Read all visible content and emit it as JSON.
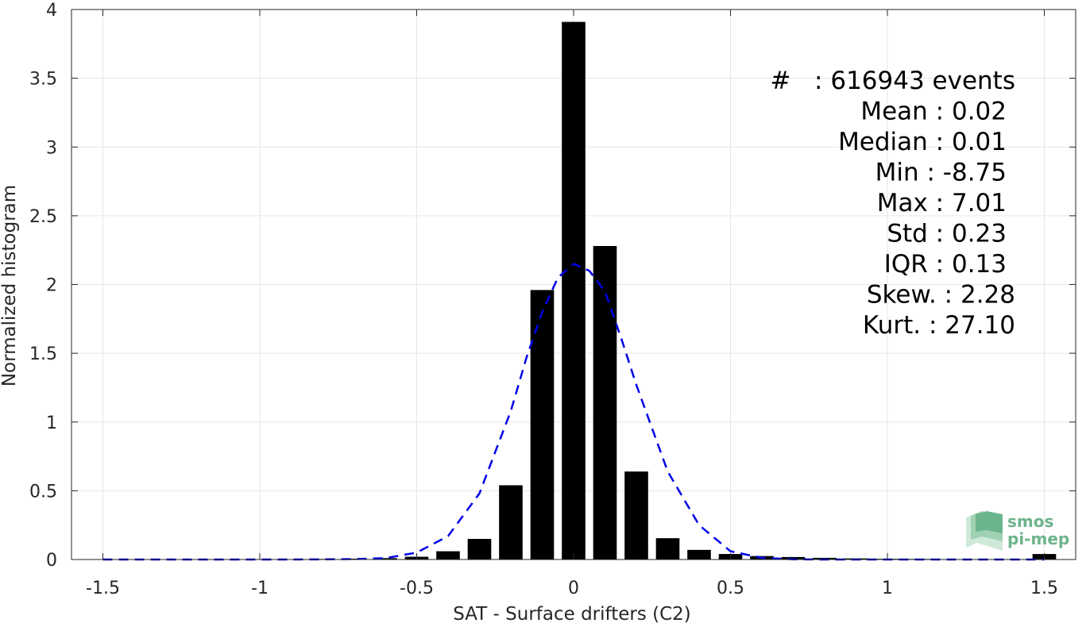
{
  "chart_data": {
    "type": "bar",
    "xlabel": "SAT - Surface drifters (C2)",
    "ylabel": "Normalized histogram",
    "xlim": [
      -1.6,
      1.6
    ],
    "ylim": [
      0,
      4
    ],
    "xticks": [
      -1.5,
      -1,
      -0.5,
      0,
      0.5,
      1,
      1.5
    ],
    "xtick_labels": [
      "-1.5",
      "-1",
      "-0.5",
      "0",
      "0.5",
      "1",
      "1.5"
    ],
    "yticks": [
      0,
      0.5,
      1,
      1.5,
      2,
      2.5,
      3,
      3.5,
      4
    ],
    "ytick_labels": [
      "0",
      "0.5",
      "1",
      "1.5",
      "2",
      "2.5",
      "3",
      "3.5",
      "4"
    ],
    "grid": true,
    "bar_width": 0.075,
    "bar_color": "#000000",
    "bars": {
      "x": [
        -1.5,
        -1.4,
        -1.3,
        -1.2,
        -1.1,
        -1.0,
        -0.9,
        -0.8,
        -0.7,
        -0.6,
        -0.5,
        -0.4,
        -0.3,
        -0.2,
        -0.1,
        0.0,
        0.1,
        0.2,
        0.3,
        0.4,
        0.5,
        0.6,
        0.7,
        0.8,
        0.9,
        1.0,
        1.1,
        1.2,
        1.3,
        1.4,
        1.5
      ],
      "values": [
        0.002,
        0.002,
        0.002,
        0.002,
        0.002,
        0.003,
        0.003,
        0.004,
        0.006,
        0.01,
        0.02,
        0.06,
        0.15,
        0.54,
        1.96,
        3.91,
        2.28,
        0.64,
        0.155,
        0.07,
        0.04,
        0.025,
        0.018,
        0.012,
        0.008,
        0.005,
        0.004,
        0.003,
        0.003,
        0.003,
        0.04
      ]
    },
    "fit_curve": {
      "style": "dashed",
      "color": "#0000e6",
      "x": [
        -1.5,
        -1.4,
        -1.3,
        -1.2,
        -1.1,
        -1.0,
        -0.9,
        -0.8,
        -0.7,
        -0.6,
        -0.5,
        -0.4,
        -0.3,
        -0.2,
        -0.15,
        -0.1,
        -0.05,
        0.0,
        0.05,
        0.1,
        0.15,
        0.2,
        0.3,
        0.4,
        0.5,
        0.6,
        0.7,
        0.8,
        0.9,
        1.0,
        1.1,
        1.2,
        1.3,
        1.4,
        1.5
      ],
      "y": [
        0,
        0,
        0,
        0,
        0,
        0,
        0,
        0.001,
        0.003,
        0.01,
        0.05,
        0.17,
        0.48,
        1.08,
        1.47,
        1.8,
        2.05,
        2.15,
        2.1,
        1.95,
        1.62,
        1.27,
        0.64,
        0.25,
        0.06,
        0.012,
        0.002,
        0,
        0,
        0,
        0,
        0,
        0,
        0,
        0
      ]
    },
    "annotations": [
      "#   : 616943 events",
      "Mean : 0.02",
      "Median : 0.01",
      "Min : -8.75",
      "Max : 7.01",
      "Std : 0.23",
      "IQR : 0.13",
      "Skew. : 2.28",
      "Kurt. : 27.10"
    ]
  },
  "logo": {
    "line1": "smos",
    "line2": "pi-mep"
  }
}
